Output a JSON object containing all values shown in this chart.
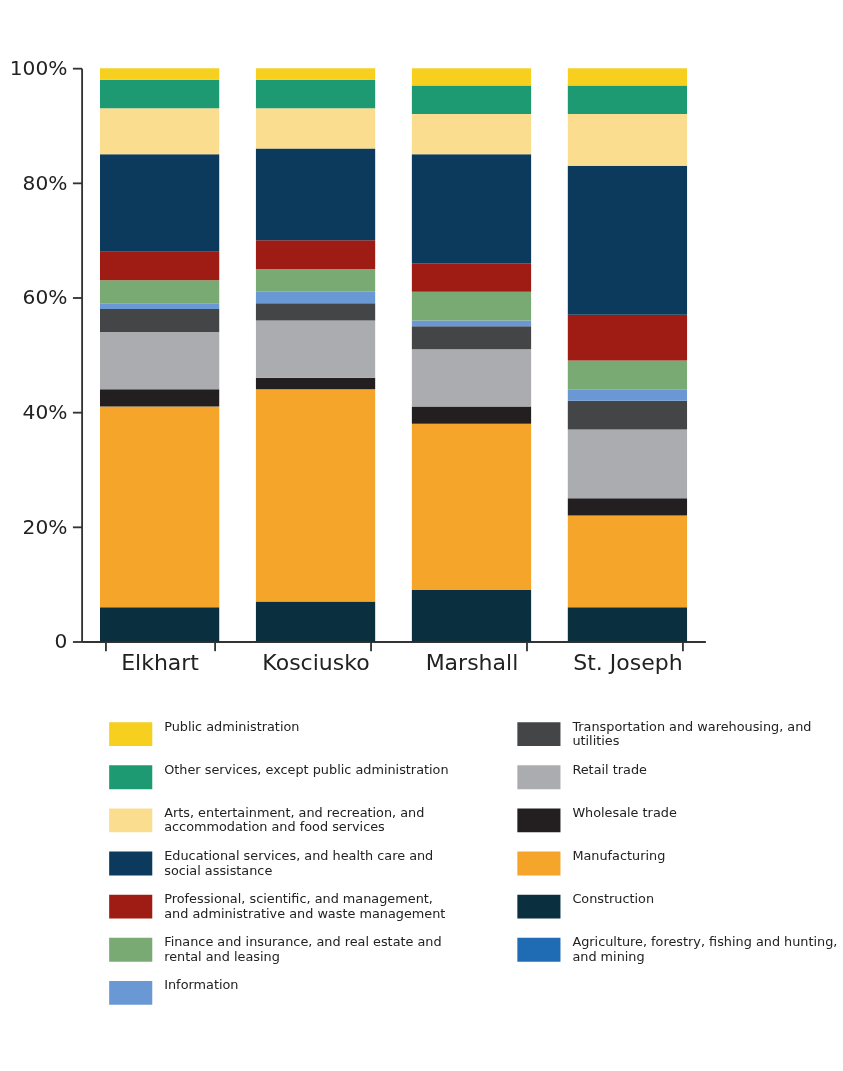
{
  "chart_data": {
    "type": "bar",
    "stacked": true,
    "categories": [
      "Elkhart",
      "Kosciusko",
      "Marshall",
      "St. Joseph"
    ],
    "ylim": [
      0,
      100
    ],
    "yticks": [
      0,
      {
        "value": 20,
        "label": "20%"
      },
      {
        "value": 40,
        "label": "40%"
      },
      {
        "value": 60,
        "label": "60%"
      },
      {
        "value": 80,
        "label": "80%"
      },
      {
        "value": 100,
        "label": "100%"
      }
    ],
    "grid": false,
    "legend": "bottom",
    "series": [
      {
        "name": "Agriculture, forestry, fishing and hunting, and mining",
        "color": "#1f6cb5",
        "values": [
          0,
          0,
          0,
          0
        ]
      },
      {
        "name": "Construction",
        "color": "#0a3040",
        "values": [
          6,
          7,
          9,
          6
        ]
      },
      {
        "name": "Manufacturing",
        "color": "#f5a52a",
        "values": [
          35,
          37,
          29,
          16
        ]
      },
      {
        "name": "Wholesale trade",
        "color": "#231f20",
        "values": [
          3,
          2,
          3,
          3
        ]
      },
      {
        "name": "Retail trade",
        "color": "#abacaf",
        "values": [
          10,
          10,
          10,
          12
        ]
      },
      {
        "name": "Transportation and warehousing, and utilities",
        "color": "#444547",
        "values": [
          4,
          3,
          4,
          5
        ]
      },
      {
        "name": "Information",
        "color": "#6a98d4",
        "values": [
          1,
          2,
          1,
          2
        ]
      },
      {
        "name": "Finance and insurance, and real estate and rental and leasing",
        "color": "#79aa74",
        "values": [
          4,
          4,
          5,
          5
        ]
      },
      {
        "name": "Professional, scientific, and management, and administrative and waste management",
        "color": "#9e1c13",
        "values": [
          5,
          5,
          5,
          8
        ]
      },
      {
        "name": "Educational services, and health care and social assistance",
        "color": "#0b3a5c",
        "values": [
          17,
          16,
          19,
          26
        ]
      },
      {
        "name": "Arts, entertainment, and recreation, and accommodation and food services",
        "color": "#fadd8f",
        "values": [
          8,
          7,
          7,
          9
        ]
      },
      {
        "name": "Other services, except public administration",
        "color": "#1e9a72",
        "values": [
          5,
          5,
          5,
          5
        ]
      },
      {
        "name": "Public administration",
        "color": "#f6cf1f",
        "values": [
          2,
          2,
          3,
          3
        ]
      }
    ]
  }
}
